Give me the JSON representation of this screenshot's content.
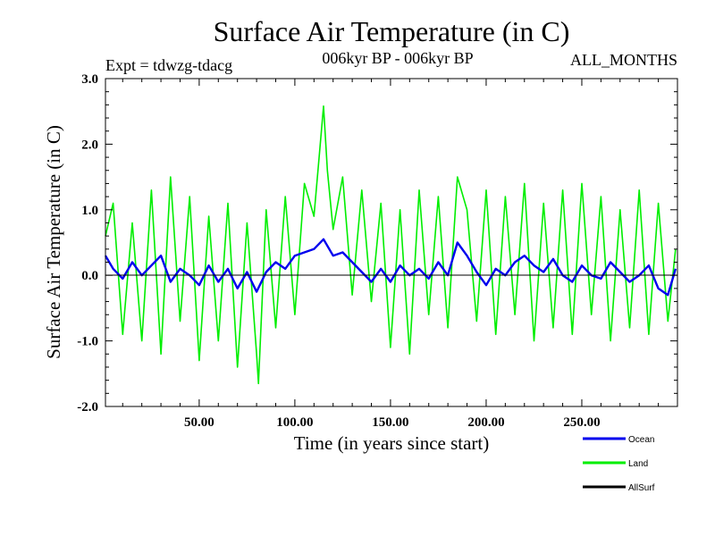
{
  "chart_data": {
    "type": "line",
    "title": "Surface Air Temperature (in C)",
    "subtitle_left": "Expt = tdwzg-tdacg",
    "subtitle_center": "006kyr BP - 006kyr BP",
    "subtitle_right": "ALL_MONTHS",
    "xlabel": "Time (in years since start)",
    "ylabel": "Surface Air Temperature (in C)",
    "xlim": [
      1,
      300
    ],
    "ylim": [
      -2.0,
      3.0
    ],
    "x_ticks": [
      {
        "value": 50,
        "label": "50.00"
      },
      {
        "value": 100,
        "label": "100.00"
      },
      {
        "value": 150,
        "label": "150.00"
      },
      {
        "value": 200,
        "label": "200.00"
      },
      {
        "value": 250,
        "label": "250.00"
      }
    ],
    "y_ticks": [
      {
        "value": 3.0,
        "label": "3.0"
      },
      {
        "value": 2.0,
        "label": "2.0"
      },
      {
        "value": 1.0,
        "label": "1.0"
      },
      {
        "value": 0.0,
        "label": "0.0"
      },
      {
        "value": -1.0,
        "label": "-1.0"
      },
      {
        "value": -2.0,
        "label": "-2.0"
      }
    ],
    "grid": false,
    "legend_position": "bottom-right",
    "series": [
      {
        "name": "Land",
        "color": "#00ee00",
        "x": [
          1,
          5,
          10,
          15,
          20,
          25,
          30,
          35,
          40,
          45,
          50,
          55,
          60,
          65,
          70,
          75,
          80,
          81,
          85,
          90,
          95,
          100,
          105,
          110,
          113,
          115,
          117,
          120,
          125,
          130,
          135,
          140,
          145,
          150,
          155,
          160,
          165,
          170,
          175,
          180,
          185,
          190,
          195,
          200,
          205,
          210,
          215,
          220,
          225,
          230,
          235,
          240,
          245,
          250,
          255,
          260,
          265,
          270,
          275,
          280,
          285,
          290,
          295,
          299
        ],
        "values": [
          0.6,
          1.1,
          -0.9,
          0.8,
          -1.0,
          1.3,
          -1.2,
          1.5,
          -0.7,
          1.2,
          -1.3,
          0.9,
          -1.0,
          1.1,
          -1.4,
          0.8,
          -1.2,
          -1.65,
          1.0,
          -0.8,
          1.2,
          -0.6,
          1.4,
          0.9,
          1.9,
          2.58,
          1.6,
          0.7,
          1.5,
          -0.3,
          1.3,
          -0.4,
          1.1,
          -1.1,
          1.0,
          -1.2,
          1.3,
          -0.6,
          1.2,
          -0.8,
          1.5,
          1.0,
          -0.7,
          1.3,
          -0.9,
          1.2,
          -0.6,
          1.4,
          -1.0,
          1.1,
          -0.8,
          1.3,
          -0.9,
          1.4,
          -0.6,
          1.2,
          -1.0,
          1.0,
          -0.8,
          1.3,
          -0.9,
          1.1,
          -0.7,
          0.4
        ]
      },
      {
        "name": "Ocean",
        "color": "#0000ee",
        "x": [
          1,
          5,
          10,
          15,
          20,
          25,
          30,
          35,
          40,
          45,
          50,
          55,
          60,
          65,
          70,
          75,
          80,
          85,
          90,
          95,
          100,
          105,
          110,
          115,
          120,
          125,
          130,
          135,
          140,
          145,
          150,
          155,
          160,
          165,
          170,
          175,
          180,
          185,
          190,
          195,
          200,
          205,
          210,
          215,
          220,
          225,
          230,
          235,
          240,
          245,
          250,
          255,
          260,
          265,
          270,
          275,
          280,
          285,
          290,
          295,
          299
        ],
        "values": [
          0.3,
          0.1,
          -0.05,
          0.2,
          0.0,
          0.15,
          0.3,
          -0.1,
          0.1,
          0.0,
          -0.15,
          0.15,
          -0.1,
          0.1,
          -0.2,
          0.05,
          -0.25,
          0.05,
          0.2,
          0.1,
          0.3,
          0.35,
          0.4,
          0.55,
          0.3,
          0.35,
          0.2,
          0.05,
          -0.1,
          0.1,
          -0.1,
          0.15,
          0.0,
          0.1,
          -0.05,
          0.2,
          0.0,
          0.5,
          0.3,
          0.05,
          -0.15,
          0.1,
          0.0,
          0.2,
          0.3,
          0.15,
          0.05,
          0.25,
          0.0,
          -0.1,
          0.15,
          0.0,
          -0.05,
          0.2,
          0.05,
          -0.1,
          0.0,
          0.15,
          -0.2,
          -0.3,
          0.1
        ]
      },
      {
        "name": "AllSurf",
        "color": "#000000",
        "x": [],
        "values": []
      }
    ],
    "legend": [
      {
        "name": "Ocean",
        "color": "#0000ee"
      },
      {
        "name": "Land",
        "color": "#00ee00"
      },
      {
        "name": "AllSurf",
        "color": "#000000"
      }
    ]
  }
}
